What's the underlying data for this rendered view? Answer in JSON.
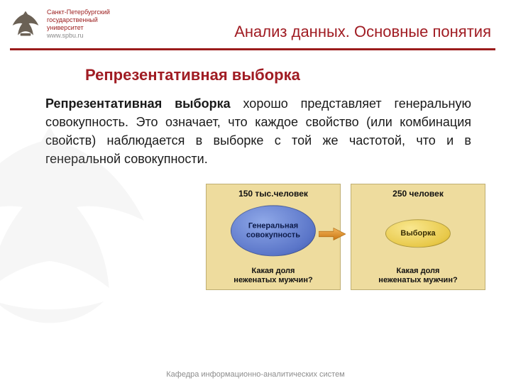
{
  "colors": {
    "brand": "#9b1b1b",
    "title": "#a01c23",
    "text": "#1a1a1a",
    "grey": "#8d8d8d",
    "panel_bg": "#eedc9e",
    "panel_border": "#bfae72",
    "bubble_big_bg": "#5a75c8",
    "bubble_small_bg": "#e8c94a",
    "arrow": "#d88a1f"
  },
  "university": {
    "name_line1": "Санкт-Петербургский",
    "name_line2": "государственный",
    "name_line3": "университет",
    "url": "www.spbu.ru"
  },
  "header": {
    "title": "Анализ данных. Основные понятия"
  },
  "subtitle": "Репрезентативная выборка",
  "paragraph": {
    "term": "Репрезентативная выборка",
    "rest": " хорошо представляет генеральную совокупность. Это означает, что каждое свойство (или комбинация свойств) наблюдается в выборке с той же частотой, что и в генеральной совокупности."
  },
  "diagram": {
    "left": {
      "top": "150 тыс.человек",
      "bubble": "Генеральная\nсовокупность",
      "bottom": "Какая доля\nнеженатых мужчин?"
    },
    "right": {
      "top": "250 человек",
      "bubble": "Выборка",
      "bottom": "Какая доля\nнеженатых мужчин?"
    }
  },
  "footer": "Кафедра информационно-аналитических систем"
}
